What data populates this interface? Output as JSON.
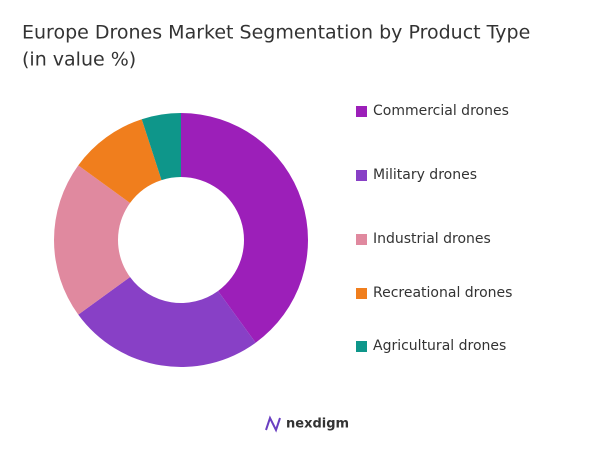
{
  "chart_data": {
    "type": "donut",
    "title": "Europe Drones Market Segmentation by Product Type",
    "subtitle": "(in value %)",
    "categories": [
      "Commercial drones",
      "Military drones",
      "Industrial drones",
      "Recreational drones",
      "Agricultural drones"
    ],
    "values": [
      40,
      25,
      20,
      10,
      5
    ],
    "colors": [
      "#9c1fb9",
      "#8840c6",
      "#e0899f",
      "#f07e1d",
      "#0e968a"
    ],
    "legend": "right"
  },
  "logo": "nexdigm"
}
